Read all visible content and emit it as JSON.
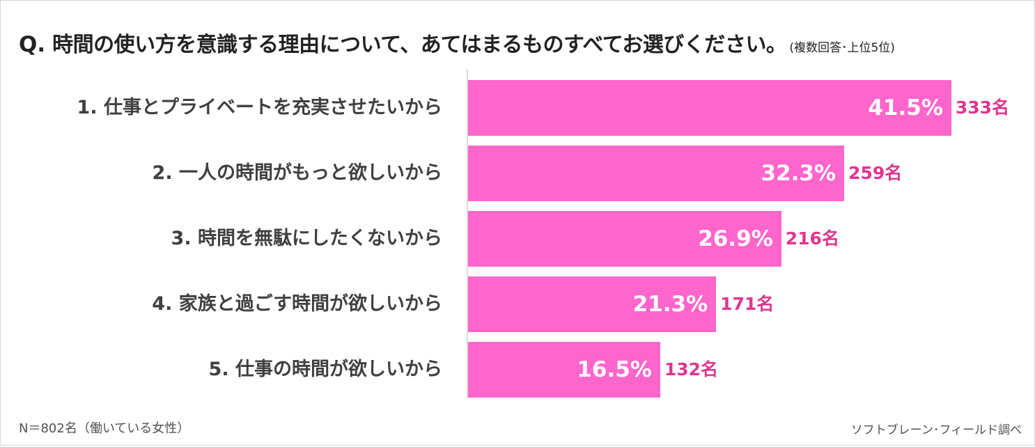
{
  "header": {
    "q_label": "Q.",
    "title": "時間の使い方を意識する理由について、あてはまるものすべてお選びください。",
    "subtitle": "(複数回答･上位5位)"
  },
  "chart_data": {
    "type": "bar",
    "orientation": "horizontal",
    "categories": [
      "1. 仕事とプライベートを充実させたいから",
      "2. 一人の時間がもっと欲しいから",
      "3. 時間を無駄にしたくないから",
      "4. 家族と過ごす時間が欲しいから",
      "5. 仕事の時間が欲しいから"
    ],
    "values": [
      41.5,
      32.3,
      26.9,
      21.3,
      16.5
    ],
    "value_labels": [
      "41.5%",
      "32.3%",
      "26.9%",
      "21.3%",
      "16.5%"
    ],
    "counts": [
      "333名",
      "259名",
      "216名",
      "171名",
      "132名"
    ],
    "xlim": [
      0,
      50
    ],
    "grid": false,
    "legend": "none",
    "bar_color": "#ff66cc",
    "count_color": "#e0358f"
  },
  "footer": {
    "sample": "N＝802名（働いている女性）",
    "source": "ソフトブレーン･フィールド調べ"
  }
}
